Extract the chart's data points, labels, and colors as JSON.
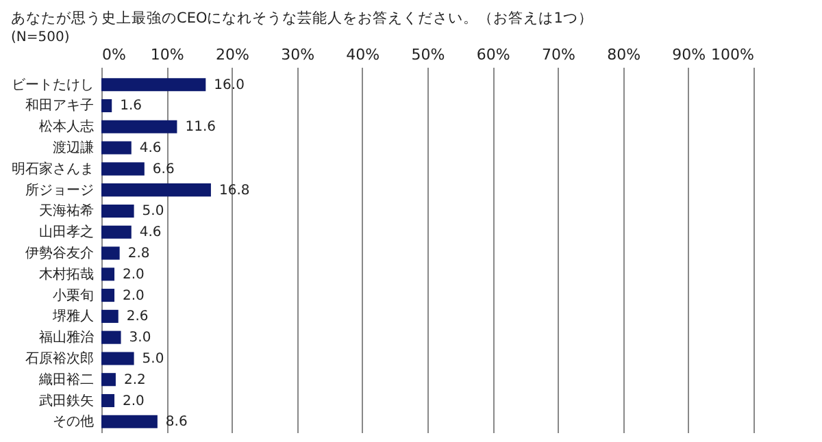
{
  "chart_data": {
    "type": "bar",
    "orientation": "horizontal",
    "title": "あなたが思う史上最強のCEOになれそうな芸能人をお答えください。（お答えは1つ）",
    "subtitle": "(N=500)",
    "categories": [
      "ビートたけし",
      "和田アキ子",
      "松本人志",
      "渡辺謙",
      "明石家さんま",
      "所ジョージ",
      "天海祐希",
      "山田孝之",
      "伊勢谷友介",
      "木村拓哉",
      "小栗旬",
      "堺雅人",
      "福山雅治",
      "石原裕次郎",
      "織田裕二",
      "武田鉄矢",
      "その他"
    ],
    "values": [
      16.0,
      1.6,
      11.6,
      4.6,
      6.6,
      16.8,
      5.0,
      4.6,
      2.8,
      2.0,
      2.0,
      2.6,
      3.0,
      5.0,
      2.2,
      2.0,
      8.6
    ],
    "value_labels": [
      "16.0",
      "1.6",
      "11.6",
      "4.6",
      "6.6",
      "16.8",
      "5.0",
      "4.6",
      "2.8",
      "2.0",
      "2.0",
      "2.6",
      "3.0",
      "5.0",
      "2.2",
      "2.0",
      "8.6"
    ],
    "color": "#0d1a6e",
    "xlim": [
      0,
      100
    ],
    "xticks": [
      {
        "value": 0,
        "label": "0%"
      },
      {
        "value": 10,
        "label": "10%"
      },
      {
        "value": 20,
        "label": "20%"
      },
      {
        "value": 30,
        "label": "30%"
      },
      {
        "value": 40,
        "label": "40%"
      },
      {
        "value": 50,
        "label": "50%"
      },
      {
        "value": 60,
        "label": "60%"
      },
      {
        "value": 70,
        "label": "70%"
      },
      {
        "value": 80,
        "label": "80%"
      },
      {
        "value": 90,
        "label": "90%"
      },
      {
        "value": 100,
        "label": "100%"
      }
    ],
    "grid": "x"
  }
}
